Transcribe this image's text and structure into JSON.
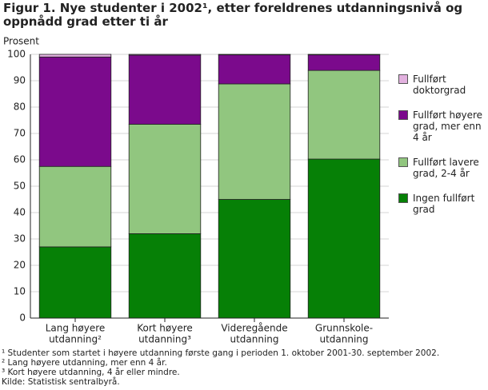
{
  "chart_data": {
    "type": "stacked-bar",
    "title": "Figur 1. Nye studenter i 2002¹, etter foreldrenes utdanningsnivå og oppnådd grad etter ti år",
    "ylabel": "Prosent",
    "categories": [
      [
        "Lang høyere",
        "utdanning²"
      ],
      [
        "Kort høyere",
        "utdanning³"
      ],
      [
        "Videregående",
        "utdanning"
      ],
      [
        "Grunnskole-",
        "utdanning"
      ]
    ],
    "series": [
      {
        "name": "Ingen fullført grad",
        "color": "#068006",
        "values": [
          27,
          32,
          45,
          60.3
        ]
      },
      {
        "name": "Fullført lavere grad, 2-4 år",
        "color": "#91c67f",
        "values": [
          30.5,
          41.5,
          43.8,
          33.6
        ]
      },
      {
        "name": "Fullført høyere grad, mer enn 4 år",
        "color": "#7b0a8c",
        "values": [
          41.5,
          26.2,
          11,
          5.9
        ]
      },
      {
        "name": "Fullført doktorgrad",
        "color": "#e2b1df",
        "values": [
          1,
          0.3,
          0.2,
          0.2
        ]
      }
    ],
    "ylim": [
      0,
      100
    ],
    "yticks": [
      0,
      10,
      20,
      30,
      40,
      50,
      60,
      70,
      80,
      90,
      100
    ],
    "grid": true,
    "footnotes": [
      "¹ Studenter som startet i høyere utdanning første gang i perioden 1. oktober 2001-30. september 2002.",
      "² Lang høyere utdanning, mer enn 4 år.",
      "³ Kort høyere utdanning, 4 år eller mindre.",
      "Kilde: Statistisk sentralbyrå."
    ]
  }
}
